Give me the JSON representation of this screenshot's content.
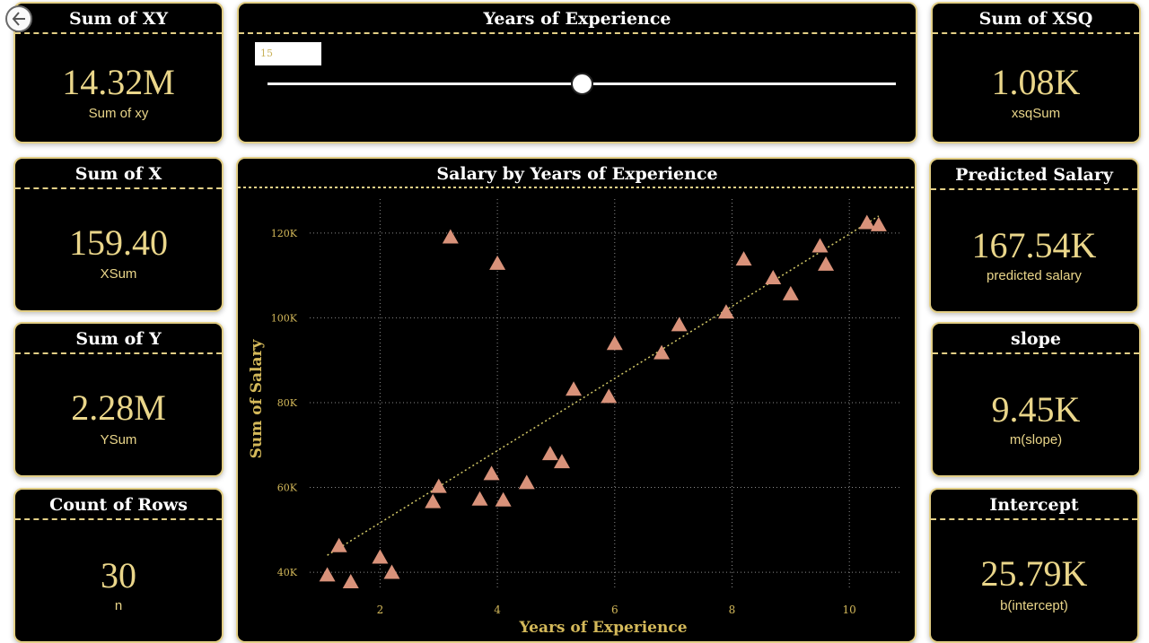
{
  "colors": {
    "accent": "#ead68a",
    "border": "#e3cf86",
    "marker": "#d9927a",
    "background": "#000000"
  },
  "kpis": {
    "sum_xy": {
      "title": "Sum of XY",
      "value": "14.32M",
      "label": "Sum of xy"
    },
    "sum_x": {
      "title": "Sum of X",
      "value": "159.40",
      "label": "XSum"
    },
    "sum_y": {
      "title": "Sum of Y",
      "value": "2.28M",
      "label": "YSum"
    },
    "count_rows": {
      "title": "Count of Rows",
      "value": "30",
      "label": "n"
    },
    "sum_xsq": {
      "title": "Sum of XSQ",
      "value": "1.08K",
      "label": "xsqSum"
    },
    "predicted_salary": {
      "title": "Predicted Salary",
      "value": "167.54K",
      "label": "predicted salary"
    },
    "slope": {
      "title": "slope",
      "value": "9.45K",
      "label": "m(slope)"
    },
    "intercept": {
      "title": "Intercept",
      "value": "25.79K",
      "label": "b(intercept)"
    }
  },
  "slider": {
    "title": "Years of Experience",
    "value": "15",
    "fraction": 0.5
  },
  "back_icon": "back-arrow-icon",
  "chart_data": {
    "type": "scatter",
    "title": "Salary by Years of Experience",
    "xlabel": "Years of Experience",
    "ylabel": "Sum of Salary",
    "xlim": [
      0.8,
      10.9
    ],
    "ylim": [
      36000,
      128000
    ],
    "xticks": [
      2,
      4,
      6,
      8,
      10
    ],
    "yticks": [
      40000,
      60000,
      80000,
      100000,
      120000
    ],
    "ytick_labels": [
      "40K",
      "60K",
      "80K",
      "100K",
      "120K"
    ],
    "grid": true,
    "marker": "triangle",
    "trendline": {
      "x": [
        1.1,
        10.5
      ],
      "y": [
        44000,
        124000
      ]
    },
    "points": [
      [
        1.1,
        39300
      ],
      [
        1.3,
        46200
      ],
      [
        1.5,
        37700
      ],
      [
        2.0,
        43500
      ],
      [
        2.2,
        39900
      ],
      [
        2.9,
        56600
      ],
      [
        3.0,
        60200
      ],
      [
        3.2,
        119000
      ],
      [
        3.7,
        57200
      ],
      [
        3.9,
        63200
      ],
      [
        4.0,
        112800
      ],
      [
        4.1,
        57000
      ],
      [
        4.5,
        61100
      ],
      [
        4.9,
        67900
      ],
      [
        5.1,
        66000
      ],
      [
        5.3,
        83100
      ],
      [
        5.9,
        81400
      ],
      [
        6.0,
        93900
      ],
      [
        6.8,
        91700
      ],
      [
        7.1,
        98300
      ],
      [
        7.9,
        101300
      ],
      [
        8.2,
        113800
      ],
      [
        8.7,
        109400
      ],
      [
        9.0,
        105600
      ],
      [
        9.5,
        116900
      ],
      [
        9.6,
        112600
      ],
      [
        10.3,
        122400
      ],
      [
        10.5,
        121900
      ]
    ]
  }
}
